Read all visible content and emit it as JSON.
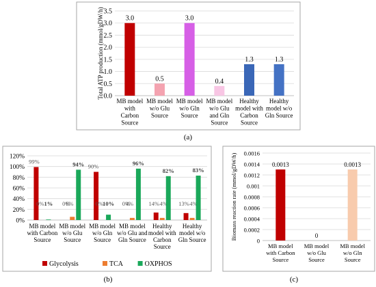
{
  "colors": {
    "dark_red": "#c00000",
    "pink": "#f4a3b0",
    "magenta": "#d65fe6",
    "light_pink": "#f8c6e4",
    "blue": "#3a67b7",
    "royal_blue": "#4472c4",
    "glycolysis": "#c00000",
    "tca": "#ed7d31",
    "oxphos": "#1aa85a",
    "peach": "#f8cbad",
    "grid": "#d9d9d9",
    "frame": "#a6a6a6"
  },
  "chart_data": [
    {
      "type": "bar",
      "panel_label": "(a)",
      "ylabel": "Total ATP production (mmol/gDW/h)",
      "ylim": [
        0,
        3.5
      ],
      "yticks": [
        "0.0",
        "0.5",
        "1.0",
        "1.5",
        "2.0",
        "2.5",
        "3.0",
        "3.5"
      ],
      "categories": [
        [
          "MB model",
          "with",
          "Carbon",
          "Source"
        ],
        [
          "MB model",
          "w/o Glu",
          "Source"
        ],
        [
          "MB model",
          "w/o Gln",
          "Source"
        ],
        [
          "MB model",
          "w/o Glu",
          "and Gln",
          "Source"
        ],
        [
          "Healthy",
          "model with",
          "Carbon",
          "Source"
        ],
        [
          "Healthy",
          "model w/o",
          "Gln Source"
        ]
      ],
      "values": [
        3.0,
        0.5,
        3.0,
        0.4,
        1.3,
        1.3
      ],
      "value_labels": [
        "3.0",
        "0.5",
        "3.0",
        "0.4",
        "1.3",
        "1.3"
      ],
      "bar_colors": [
        "dark_red",
        "pink",
        "magenta",
        "light_pink",
        "blue",
        "royal_blue"
      ]
    },
    {
      "type": "bar",
      "panel_label": "(b)",
      "ylim": [
        0,
        1.2
      ],
      "yticks": [
        "0%",
        "20%",
        "40%",
        "60%",
        "80%",
        "100%",
        "120%"
      ],
      "categories": [
        [
          "MB model",
          "with Carbon",
          "Source"
        ],
        [
          "MB model",
          "w/o Glu",
          "Source"
        ],
        [
          "MB model",
          "w/o Gln",
          "Source"
        ],
        [
          "MB model",
          "w/o Glu and",
          "Gln Source"
        ],
        [
          "Healthy",
          "model with",
          "Carbon",
          "Source"
        ],
        [
          "Healthy",
          "model w/o",
          "Gln Source"
        ]
      ],
      "series": [
        {
          "name": "Glycolysis",
          "color": "glycolysis",
          "values": [
            0.99,
            0.0,
            0.9,
            0.0,
            0.14,
            0.13
          ],
          "labels": [
            "99%",
            "0%",
            "90%",
            "0%",
            "14%",
            "13%"
          ]
        },
        {
          "name": "TCA",
          "color": "tca",
          "values": [
            0.0,
            0.06,
            0.0,
            0.04,
            0.04,
            0.04
          ],
          "labels": [
            "0%",
            "6%",
            "0%",
            "4%",
            "4%",
            "4%"
          ]
        },
        {
          "name": "OXPHOS",
          "color": "oxphos",
          "values": [
            0.01,
            0.94,
            0.1,
            0.96,
            0.82,
            0.83
          ],
          "labels": [
            "1%",
            "94%",
            "10%",
            "96%",
            "82%",
            "83%"
          ]
        }
      ],
      "legend_position": "bottom"
    },
    {
      "type": "bar",
      "panel_label": "(c)",
      "ylabel": "Biomass reaction rate (mmol/gDW/h)",
      "ylim": [
        0,
        0.0016
      ],
      "yticks": [
        "0",
        "0.0002",
        "0.0004",
        "0.0006",
        "0.0008",
        "0.001",
        "0.0012",
        "0.0014",
        "0.0016"
      ],
      "categories": [
        [
          "MB model",
          "with Carbon",
          "Source"
        ],
        [
          "MB model",
          "w/o Glu",
          "Source"
        ],
        [
          "MB model",
          "w/o Gln",
          "Source"
        ]
      ],
      "values": [
        0.0013,
        0,
        0.0013
      ],
      "value_labels": [
        "0.0013",
        "0",
        "0.0013"
      ],
      "bar_colors": [
        "dark_red",
        "tca",
        "peach"
      ]
    }
  ]
}
